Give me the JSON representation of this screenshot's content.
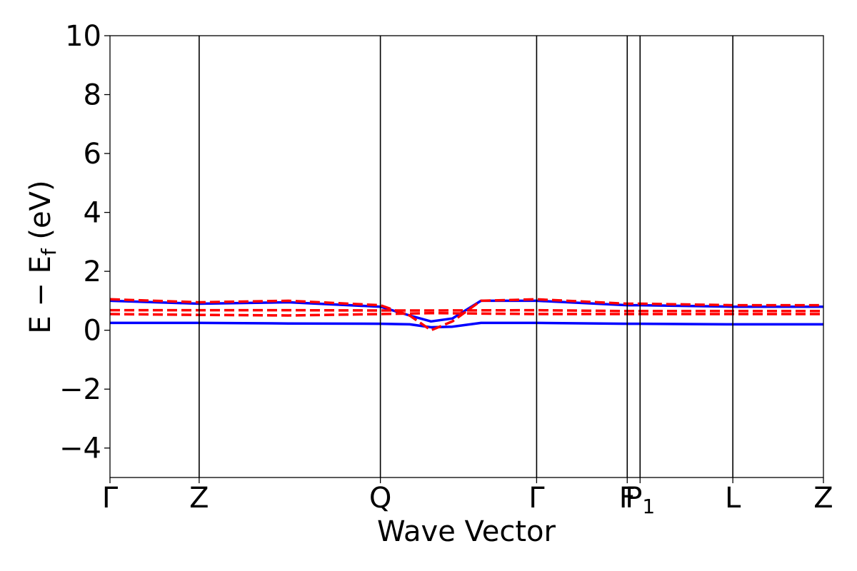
{
  "chart_data": {
    "type": "line",
    "title": "",
    "xlabel": "Wave Vector",
    "ylabel": "E − E_f (eV)",
    "ylabel_parts": {
      "main": "E − E",
      "sub": "f",
      "unit": " (eV)"
    },
    "ylim": [
      -5,
      10
    ],
    "yticks": [
      {
        "value": -4,
        "label": "−4"
      },
      {
        "value": -2,
        "label": "−2"
      },
      {
        "value": 0,
        "label": "0"
      },
      {
        "value": 2,
        "label": "2"
      },
      {
        "value": 4,
        "label": "4"
      },
      {
        "value": 6,
        "label": "6"
      },
      {
        "value": 8,
        "label": "8"
      },
      {
        "value": 10,
        "label": "10"
      }
    ],
    "xlim": [
      0,
      1
    ],
    "kpoints": [
      {
        "label": "Γ",
        "x": 0.0
      },
      {
        "label": "Z",
        "x": 0.125
      },
      {
        "label": "Q",
        "x": 0.379
      },
      {
        "label": "Γ",
        "x": 0.598
      },
      {
        "label": "F",
        "x": 0.725
      },
      {
        "label": "P",
        "sub": "1",
        "x": 0.743
      },
      {
        "label": "L",
        "x": 0.873
      },
      {
        "label": "Z",
        "x": 1.0
      }
    ],
    "grid": false,
    "legend": "none",
    "colors": {
      "spin_up": "#0000ff",
      "spin_down": "#ff0000"
    },
    "series": [
      {
        "style": "solid",
        "color": "#0000ff",
        "x": [
          0,
          0.125,
          0.25,
          0.379,
          0.42,
          0.45,
          0.48,
          0.52,
          0.598,
          0.725,
          0.743,
          0.873,
          1.0
        ],
        "y": [
          0.25,
          0.25,
          0.23,
          0.22,
          0.2,
          0.1,
          0.12,
          0.25,
          0.25,
          0.22,
          0.22,
          0.2,
          0.2
        ]
      },
      {
        "style": "solid",
        "color": "#0000ff",
        "x": [
          0,
          0.125,
          0.25,
          0.379,
          0.42,
          0.45,
          0.48,
          0.52,
          0.598,
          0.725,
          0.743,
          0.873,
          1.0
        ],
        "y": [
          1.0,
          0.9,
          0.95,
          0.8,
          0.5,
          0.3,
          0.4,
          1.0,
          1.0,
          0.85,
          0.85,
          0.8,
          0.8
        ]
      },
      {
        "style": "dashed",
        "color": "#ff0000",
        "x": [
          0,
          0.125,
          0.25,
          0.379,
          0.45,
          0.598,
          0.725,
          0.743,
          0.873,
          1.0
        ],
        "y": [
          0.68,
          0.68,
          0.68,
          0.67,
          0.67,
          0.68,
          0.65,
          0.65,
          0.65,
          0.65
        ]
      },
      {
        "style": "dashed",
        "color": "#ff0000",
        "x": [
          0,
          0.125,
          0.25,
          0.379,
          0.45,
          0.598,
          0.725,
          0.743,
          0.873,
          1.0
        ],
        "y": [
          0.55,
          0.52,
          0.5,
          0.55,
          0.58,
          0.55,
          0.55,
          0.55,
          0.55,
          0.55
        ]
      },
      {
        "style": "dashed",
        "color": "#ff0000",
        "x": [
          0,
          0.125,
          0.25,
          0.379,
          0.42,
          0.45,
          0.48,
          0.52,
          0.598,
          0.725,
          0.743,
          0.873,
          1.0
        ],
        "y": [
          1.05,
          0.95,
          1.0,
          0.85,
          0.5,
          0.0,
          0.3,
          1.0,
          1.05,
          0.9,
          0.9,
          0.85,
          0.85
        ]
      }
    ]
  }
}
